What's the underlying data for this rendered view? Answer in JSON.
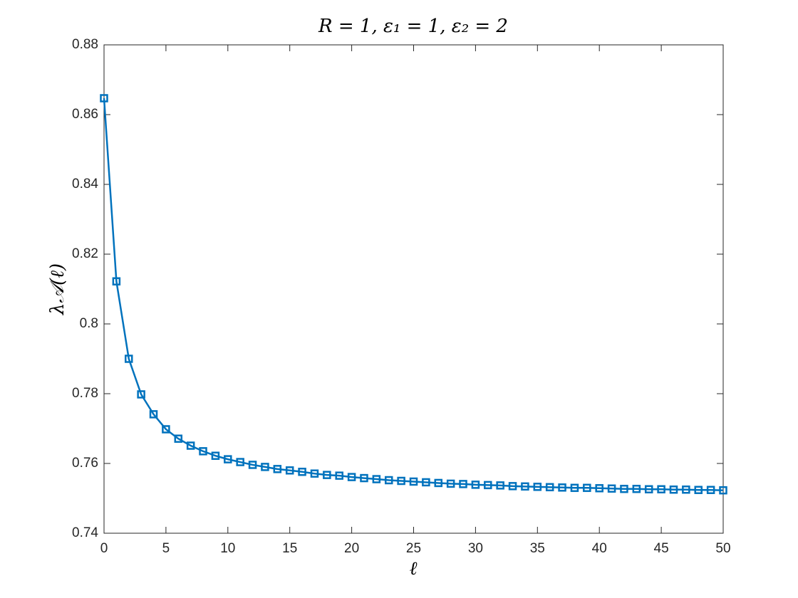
{
  "chart_data": {
    "type": "line",
    "title": "R = 1,  ε₁ = 1,  ε₂ = 2",
    "xlabel": "ℓ",
    "ylabel": "λ𝒜(ℓ)",
    "x": [
      0,
      1,
      2,
      3,
      4,
      5,
      6,
      7,
      8,
      9,
      10,
      11,
      12,
      13,
      14,
      15,
      16,
      17,
      18,
      19,
      20,
      21,
      22,
      23,
      24,
      25,
      26,
      27,
      28,
      29,
      30,
      31,
      32,
      33,
      34,
      35,
      36,
      37,
      38,
      39,
      40,
      41,
      42,
      43,
      44,
      45,
      46,
      47,
      48,
      49,
      50
    ],
    "values": [
      0.8647,
      0.8122,
      0.79,
      0.7798,
      0.7741,
      0.7698,
      0.7671,
      0.7651,
      0.7635,
      0.7622,
      0.7612,
      0.7604,
      0.7596,
      0.759,
      0.7584,
      0.758,
      0.7576,
      0.7571,
      0.7567,
      0.7565,
      0.7561,
      0.7558,
      0.7555,
      0.7552,
      0.755,
      0.7548,
      0.7546,
      0.7544,
      0.7542,
      0.7541,
      0.7539,
      0.7538,
      0.7537,
      0.7535,
      0.7534,
      0.7533,
      0.7532,
      0.7531,
      0.753,
      0.753,
      0.7529,
      0.7528,
      0.7527,
      0.7527,
      0.7526,
      0.7526,
      0.7525,
      0.7525,
      0.7524,
      0.7524,
      0.7523
    ],
    "color": "#0072bd",
    "xlim": [
      0,
      50
    ],
    "xticks": [
      0,
      5,
      10,
      15,
      20,
      25,
      30,
      35,
      40,
      45,
      50
    ],
    "ylim": [
      0.74,
      0.88
    ],
    "yticks": [
      0.74,
      0.76,
      0.78,
      0.8,
      0.82,
      0.84,
      0.86,
      0.88
    ],
    "grid": false
  }
}
